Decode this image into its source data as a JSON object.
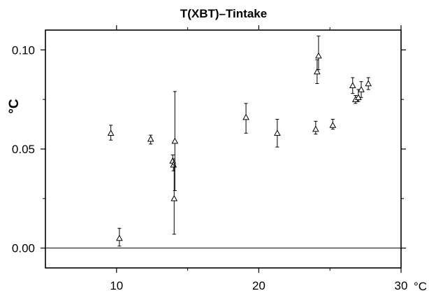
{
  "chart_data": {
    "type": "scatter",
    "title": "T(XBT)–Tintake",
    "xlabel": "",
    "ylabel": "°C",
    "x_unit_label": "°C",
    "xlim": [
      5,
      30
    ],
    "ylim": [
      -0.01,
      0.11
    ],
    "x_ticks": [
      10,
      20,
      30
    ],
    "x_tick_labels": [
      "10",
      "20",
      "30"
    ],
    "y_ticks": [
      0.0,
      0.05,
      0.1
    ],
    "y_tick_labels": [
      "0.00",
      "0.05",
      "0.10"
    ],
    "x_minor_ticks": [
      15,
      25
    ],
    "y_minor_ticks": [
      0.025,
      0.075
    ],
    "zero_line": 0,
    "grid": false,
    "marker": "open-triangle",
    "error_bars": true,
    "points": [
      {
        "x": 9.6,
        "y": 0.058,
        "err_low": 0.0035,
        "err_high": 0.004
      },
      {
        "x": 10.2,
        "y": 0.005,
        "err_low": 0.004,
        "err_high": 0.005
      },
      {
        "x": 12.4,
        "y": 0.055,
        "err_low": 0.0025,
        "err_high": 0.002
      },
      {
        "x": 13.95,
        "y": 0.044,
        "err_low": 0.003,
        "err_high": 0.003
      },
      {
        "x": 14.0,
        "y": 0.042,
        "err_low": 0.003,
        "err_high": 0.003
      },
      {
        "x": 14.05,
        "y": 0.025,
        "err_low": 0.018,
        "err_high": 0.017
      },
      {
        "x": 14.1,
        "y": 0.054,
        "err_low": 0.025,
        "err_high": 0.025
      },
      {
        "x": 19.1,
        "y": 0.066,
        "err_low": 0.008,
        "err_high": 0.007
      },
      {
        "x": 21.3,
        "y": 0.058,
        "err_low": 0.007,
        "err_high": 0.007
      },
      {
        "x": 24.0,
        "y": 0.06,
        "err_low": 0.0025,
        "err_high": 0.004
      },
      {
        "x": 24.1,
        "y": 0.089,
        "err_low": 0.006,
        "err_high": 0.006
      },
      {
        "x": 24.2,
        "y": 0.097,
        "err_low": 0.007,
        "err_high": 0.01
      },
      {
        "x": 25.2,
        "y": 0.062,
        "err_low": 0.002,
        "err_high": 0.003
      },
      {
        "x": 26.6,
        "y": 0.082,
        "err_low": 0.004,
        "err_high": 0.004
      },
      {
        "x": 26.8,
        "y": 0.075,
        "err_low": 0.002,
        "err_high": 0.002
      },
      {
        "x": 27.0,
        "y": 0.076,
        "err_low": 0.002,
        "err_high": 0.004
      },
      {
        "x": 27.2,
        "y": 0.08,
        "err_low": 0.004,
        "err_high": 0.004
      },
      {
        "x": 27.7,
        "y": 0.083,
        "err_low": 0.003,
        "err_high": 0.003
      }
    ]
  }
}
